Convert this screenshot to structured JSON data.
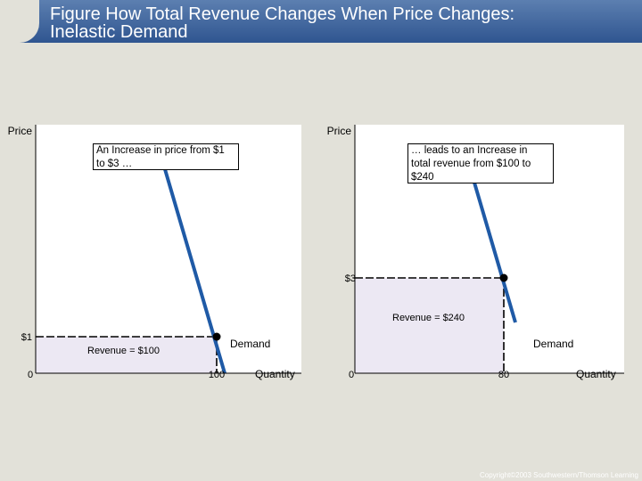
{
  "title": "Figure  How Total Revenue Changes When Price Changes:\nInelastic Demand",
  "copyright": "Copyright©2003  Southwestern/Thomson Learning",
  "colors": {
    "demand": "#1f5aa6",
    "revenue_fill": "#ece8f3",
    "panel": "#ffffff",
    "background": "#e2e1d9"
  },
  "chart_data": [
    {
      "type": "line",
      "ylabel": "Price",
      "xlabel": "Quantity",
      "series": [
        {
          "name": "Demand",
          "label_text": "Demand"
        }
      ],
      "point": {
        "price": 1,
        "quantity": 100,
        "price_label": "$1",
        "quantity_label": "100"
      },
      "origin_label": "0",
      "revenue_label": "Revenue =  $100",
      "annotation": "An Increase in price from $1\nto $3 …"
    },
    {
      "type": "line",
      "ylabel": "Price",
      "xlabel": "Quantity",
      "series": [
        {
          "name": "Demand",
          "label_text": "Demand"
        }
      ],
      "point": {
        "price": 3,
        "quantity": 80,
        "price_label": "$3",
        "quantity_label": "80"
      },
      "origin_label": "0",
      "revenue_label": "Revenue = $240",
      "annotation": "… leads to an Increase in\ntotal revenue from $100 to\n$240"
    }
  ]
}
